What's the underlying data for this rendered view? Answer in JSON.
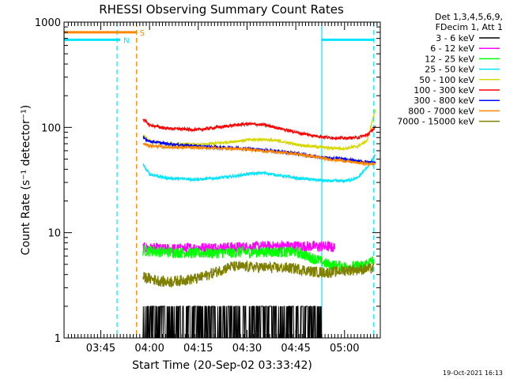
{
  "chart_data": {
    "type": "line",
    "title": "RHESSI Observing Summary Count Rates",
    "xlabel": "Start Time (20-Sep-02 03:33:42)",
    "ylabel": "Count Rate (s⁻¹ detector⁻¹)",
    "y_scale": "log",
    "ylim": [
      1,
      1000
    ],
    "x_unit": "UT",
    "xlim": [
      "03:33:42",
      "05:11:00"
    ],
    "x_ticks": [
      "03:45",
      "04:00",
      "04:15",
      "04:30",
      "04:45",
      "05:00"
    ],
    "y_ticks": [
      "1",
      "10",
      "100",
      "1000"
    ],
    "legend_header": [
      "Det 1,3,4,5,6,9,",
      "FDecim 1, Att 1"
    ],
    "legend_position": "right",
    "timestamp": "19-Oct-2021 16:13",
    "flags": [
      {
        "label": "S",
        "color": "#ff8800",
        "value": 800,
        "segments": [
          [
            "03:33:42",
            "03:56:00"
          ]
        ]
      },
      {
        "label": "N",
        "color": "#00e5ff",
        "value": 680,
        "segments": [
          [
            "03:33:42",
            "03:51:00"
          ],
          [
            "04:53:00",
            "05:09:00"
          ]
        ]
      }
    ],
    "markers": [
      {
        "time": "03:33:42",
        "color": "#00e5ff",
        "style": "solid"
      },
      {
        "time": "03:50:00",
        "color": "#00e5ff",
        "style": "dashed"
      },
      {
        "time": "03:56:00",
        "color": "#ff8800",
        "style": "dashed"
      },
      {
        "time": "04:53:00",
        "color": "#00e5ff",
        "style": "solid"
      },
      {
        "time": "05:09:00",
        "color": "#00e5ff",
        "style": "dashed"
      }
    ],
    "data_start": "03:58:00",
    "data_end": "05:09:30",
    "series": [
      {
        "name": "3 - 6 keV",
        "color": "#000000",
        "times": [
          "03:58:00",
          "04:05:00",
          "04:15:00",
          "04:25:00",
          "04:35:00",
          "04:45:00",
          "04:53:00"
        ],
        "values": [
          1.6,
          1.5,
          1.6,
          1.6,
          1.5,
          1.4,
          1.3
        ]
      },
      {
        "name": "6 - 12 keV",
        "color": "#ff00ff",
        "times": [
          "03:58:00",
          "04:05:00",
          "04:15:00",
          "04:25:00",
          "04:35:00",
          "04:45:00",
          "04:55:00",
          "04:57:00"
        ],
        "values": [
          7.2,
          7.0,
          7.2,
          7.3,
          7.4,
          7.5,
          7.4,
          7.2
        ]
      },
      {
        "name": "12 - 25 keV",
        "color": "#00ff00",
        "times": [
          "03:58:00",
          "04:05:00",
          "04:15:00",
          "04:25:00",
          "04:35:00",
          "04:45:00",
          "04:52:00",
          "04:55:00",
          "05:00:00",
          "05:05:00",
          "05:09:00"
        ],
        "values": [
          6.8,
          6.6,
          6.4,
          6.5,
          6.6,
          6.6,
          5.5,
          5.0,
          4.8,
          4.8,
          5.5
        ]
      },
      {
        "name": "25 - 50 keV",
        "color": "#00e5ff",
        "times": [
          "03:58:00",
          "04:00:00",
          "04:05:00",
          "04:15:00",
          "04:25:00",
          "04:30:00",
          "04:35:00",
          "04:40:00",
          "04:45:00",
          "04:50:00",
          "04:55:00",
          "05:00:00",
          "05:04:00",
          "05:07:00",
          "05:09:30"
        ],
        "values": [
          44,
          36,
          33,
          32,
          34,
          36,
          37,
          35,
          33,
          32,
          31,
          31,
          33,
          42,
          55
        ]
      },
      {
        "name": "50 - 100 keV",
        "color": "#d7d700",
        "times": [
          "03:58:00",
          "04:00:00",
          "04:05:00",
          "04:15:00",
          "04:25:00",
          "04:30:00",
          "04:35:00",
          "04:40:00",
          "04:45:00",
          "04:50:00",
          "04:55:00",
          "05:00:00",
          "05:04:00",
          "05:07:00",
          "05:09:30"
        ],
        "values": [
          84,
          74,
          70,
          68,
          73,
          76,
          77,
          74,
          69,
          66,
          64,
          63,
          66,
          75,
          150
        ]
      },
      {
        "name": "100 - 300 keV",
        "color": "#ff0000",
        "times": [
          "03:58:00",
          "04:00:00",
          "04:05:00",
          "04:15:00",
          "04:25:00",
          "04:30:00",
          "04:35:00",
          "04:40:00",
          "04:45:00",
          "04:50:00",
          "04:55:00",
          "05:00:00",
          "05:04:00",
          "05:07:00",
          "05:09:30"
        ],
        "values": [
          120,
          105,
          98,
          95,
          104,
          108,
          106,
          98,
          90,
          84,
          80,
          79,
          80,
          85,
          100
        ]
      },
      {
        "name": "300 - 800 keV",
        "color": "#0000ff",
        "times": [
          "03:58:00",
          "04:00:00",
          "04:05:00",
          "04:15:00",
          "04:25:00",
          "04:30:00",
          "04:35:00",
          "04:40:00",
          "04:45:00",
          "04:50:00",
          "04:55:00",
          "05:00:00",
          "05:04:00",
          "05:07:00",
          "05:09:30"
        ],
        "values": [
          80,
          74,
          70,
          66,
          64,
          63,
          61,
          59,
          57,
          53,
          51,
          50,
          48,
          47,
          46
        ]
      },
      {
        "name": "800 - 7000 keV",
        "color": "#ff8800",
        "times": [
          "03:58:00",
          "04:00:00",
          "04:05:00",
          "04:15:00",
          "04:25:00",
          "04:30:00",
          "04:35:00",
          "04:40:00",
          "04:45:00",
          "04:50:00",
          "04:55:00",
          "05:00:00",
          "05:04:00",
          "05:07:00",
          "05:09:30"
        ],
        "values": [
          70,
          67,
          65,
          64,
          63,
          62,
          60,
          58,
          56,
          53,
          50,
          48,
          46,
          45,
          45
        ]
      },
      {
        "name": "7000 - 15000 keV",
        "color": "#808000",
        "times": [
          "03:58:00",
          "04:05:00",
          "04:15:00",
          "04:25:00",
          "04:35:00",
          "04:45:00",
          "04:50:00",
          "04:55:00",
          "05:00:00",
          "05:05:00",
          "05:09:00"
        ],
        "values": [
          3.8,
          3.4,
          3.7,
          4.8,
          4.7,
          4.6,
          4.3,
          4.2,
          4.4,
          4.5,
          4.6
        ]
      }
    ]
  }
}
